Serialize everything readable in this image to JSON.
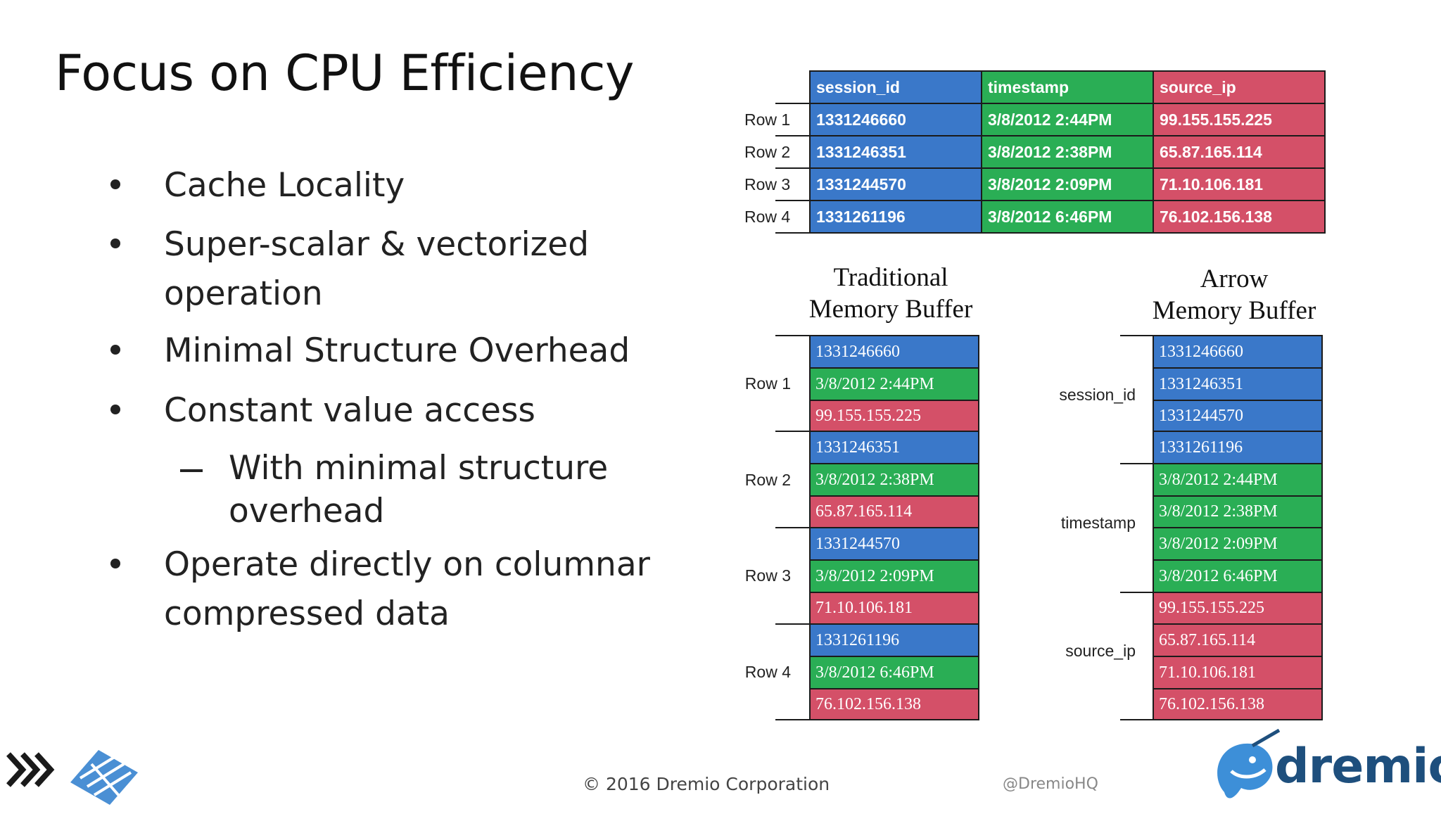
{
  "slide": {
    "title": "Focus on CPU Efficiency",
    "bullets": [
      {
        "lines": [
          "Cache Locality"
        ]
      },
      {
        "lines": [
          "Super-scalar & vectorized",
          "operation"
        ]
      },
      {
        "lines": [
          "Minimal Structure Overhead"
        ]
      },
      {
        "lines": [
          "Constant value access"
        ]
      },
      {
        "lines": [
          "Operate directly on columnar",
          "compressed data"
        ]
      }
    ],
    "sub_bullet": {
      "lines": [
        "With minimal structure",
        "overhead"
      ]
    }
  },
  "table": {
    "headers": [
      "session_id",
      "timestamp",
      "source_ip"
    ],
    "rows": [
      {
        "label": "Row 1",
        "cells": [
          "1331246660",
          "3/8/2012 2:44PM",
          "99.155.155.225"
        ]
      },
      {
        "label": "Row 2",
        "cells": [
          "1331246351",
          "3/8/2012 2:38PM",
          "65.87.165.114"
        ]
      },
      {
        "label": "Row 3",
        "cells": [
          "1331244570",
          "3/8/2012 2:09PM",
          "71.10.106.181"
        ]
      },
      {
        "label": "Row 4",
        "cells": [
          "1331261196",
          "3/8/2012 6:46PM",
          "76.102.156.138"
        ]
      }
    ]
  },
  "traditional_buffer": {
    "heading_lines": [
      "Traditional",
      "Memory Buffer"
    ],
    "groups": [
      {
        "label": "Row 1",
        "cells": [
          "1331246660",
          "3/8/2012 2:44PM",
          "99.155.155.225"
        ]
      },
      {
        "label": "Row 2",
        "cells": [
          "1331246351",
          "3/8/2012 2:38PM",
          "65.87.165.114"
        ]
      },
      {
        "label": "Row 3",
        "cells": [
          "1331244570",
          "3/8/2012 2:09PM",
          "71.10.106.181"
        ]
      },
      {
        "label": "Row 4",
        "cells": [
          "1331261196",
          "3/8/2012 6:46PM",
          "76.102.156.138"
        ]
      }
    ]
  },
  "arrow_buffer": {
    "heading_lines": [
      "Arrow",
      "Memory Buffer"
    ],
    "groups": [
      {
        "label": "session_id",
        "cells": [
          "1331246660",
          "1331246351",
          "1331244570",
          "1331261196"
        ]
      },
      {
        "label": "timestamp",
        "cells": [
          "3/8/2012 2:44PM",
          "3/8/2012 2:38PM",
          "3/8/2012 2:09PM",
          "3/8/2012 6:46PM"
        ]
      },
      {
        "label": "source_ip",
        "cells": [
          "99.155.155.225",
          "65.87.165.114",
          "71.10.106.181",
          "76.102.156.138"
        ]
      }
    ]
  },
  "colors": {
    "session_id": "#3a78c9",
    "timestamp": "#2aae55",
    "source_ip": "#d45068",
    "brand": "#1e4f7d"
  },
  "footer": {
    "copyright": "© 2016 Dremio Corporation",
    "handle": "@DremioHQ",
    "brand": "dremio",
    "left_logo_icon": "chevrons-logo-icon",
    "right_logo_icon": "narwhal-logo-icon"
  }
}
